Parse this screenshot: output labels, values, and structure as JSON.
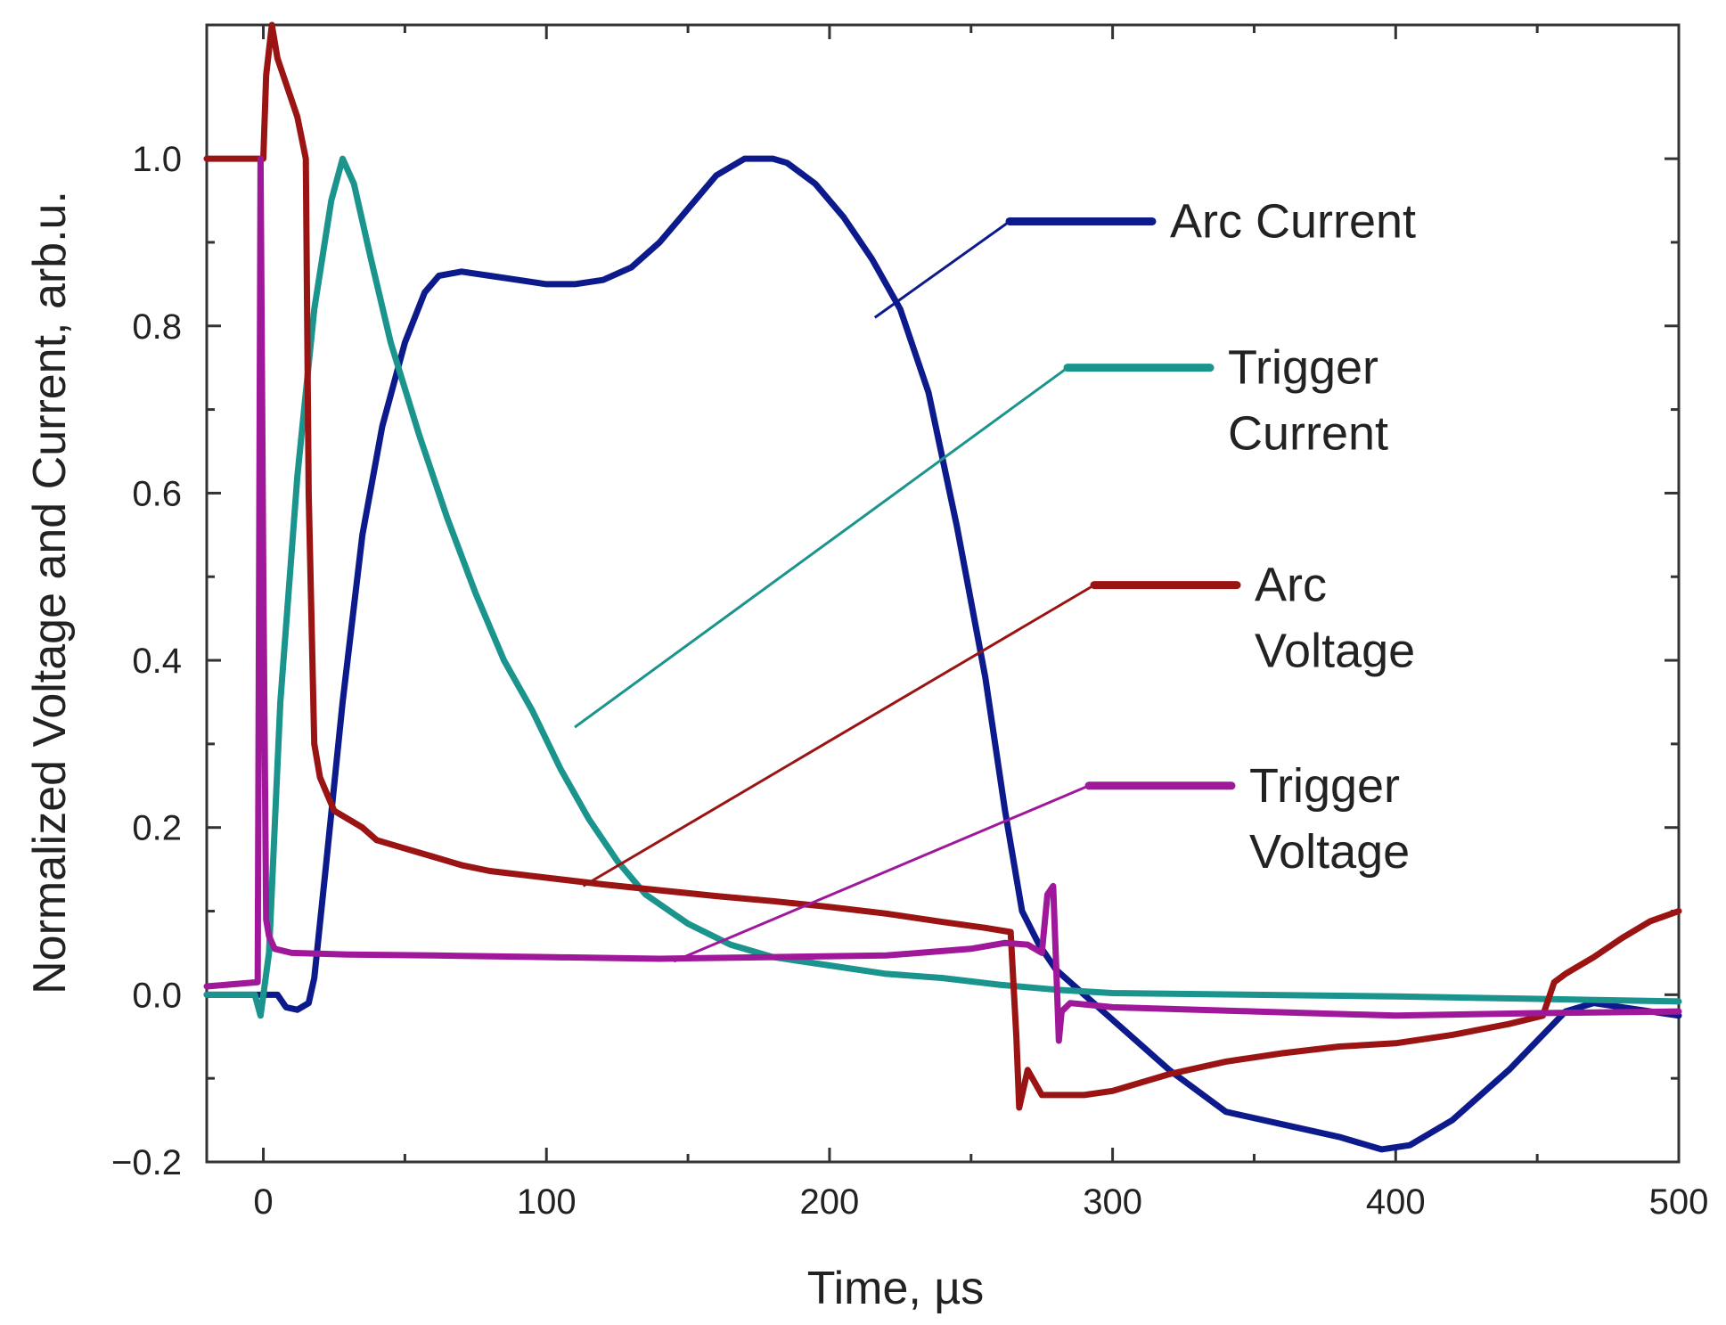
{
  "chart_data": {
    "type": "line",
    "title": "",
    "xlabel": "Time, µs",
    "ylabel": "Normalized Voltage and Current, arb.u.",
    "xlim": [
      -20,
      500
    ],
    "ylim": [
      -0.2,
      1.16
    ],
    "xticks": [
      0,
      100,
      200,
      300,
      400,
      500
    ],
    "xtick_labels": [
      "0",
      "100",
      "200",
      "300",
      "400",
      "500"
    ],
    "yticks": [
      -0.2,
      0.0,
      0.2,
      0.4,
      0.6,
      0.8,
      1.0
    ],
    "ytick_labels": [
      "−0.2",
      "0.0",
      "0.2",
      "0.4",
      "0.6",
      "0.8",
      "1.0"
    ],
    "grid": false,
    "series": [
      {
        "name": "Arc Current",
        "label_lines": [
          "Arc Current"
        ],
        "color": "#0d1a8c",
        "points": [
          [
            -20,
            0.0
          ],
          [
            5,
            0.0
          ],
          [
            8,
            -0.015
          ],
          [
            12,
            -0.018
          ],
          [
            16,
            -0.01
          ],
          [
            18,
            0.02
          ],
          [
            22,
            0.15
          ],
          [
            28,
            0.35
          ],
          [
            35,
            0.55
          ],
          [
            42,
            0.68
          ],
          [
            50,
            0.78
          ],
          [
            57,
            0.84
          ],
          [
            62,
            0.86
          ],
          [
            70,
            0.865
          ],
          [
            80,
            0.86
          ],
          [
            90,
            0.855
          ],
          [
            100,
            0.85
          ],
          [
            110,
            0.85
          ],
          [
            120,
            0.855
          ],
          [
            130,
            0.87
          ],
          [
            140,
            0.9
          ],
          [
            150,
            0.94
          ],
          [
            160,
            0.98
          ],
          [
            170,
            1.0
          ],
          [
            180,
            1.0
          ],
          [
            185,
            0.995
          ],
          [
            195,
            0.97
          ],
          [
            205,
            0.93
          ],
          [
            215,
            0.88
          ],
          [
            225,
            0.82
          ],
          [
            235,
            0.72
          ],
          [
            245,
            0.56
          ],
          [
            255,
            0.38
          ],
          [
            262,
            0.22
          ],
          [
            268,
            0.1
          ],
          [
            274,
            0.06
          ],
          [
            280,
            0.03
          ],
          [
            290,
            0.0
          ],
          [
            300,
            -0.03
          ],
          [
            320,
            -0.09
          ],
          [
            340,
            -0.14
          ],
          [
            360,
            -0.155
          ],
          [
            380,
            -0.17
          ],
          [
            395,
            -0.185
          ],
          [
            405,
            -0.18
          ],
          [
            420,
            -0.15
          ],
          [
            440,
            -0.09
          ],
          [
            460,
            -0.02
          ],
          [
            470,
            -0.01
          ],
          [
            500,
            -0.025
          ]
        ]
      },
      {
        "name": "Trigger Current",
        "label_lines": [
          "Trigger",
          "Current"
        ],
        "color": "#1a948c",
        "points": [
          [
            -20,
            0.0
          ],
          [
            -3,
            0.0
          ],
          [
            -1,
            -0.025
          ],
          [
            2,
            0.05
          ],
          [
            6,
            0.35
          ],
          [
            12,
            0.62
          ],
          [
            18,
            0.82
          ],
          [
            24,
            0.95
          ],
          [
            28,
            1.0
          ],
          [
            32,
            0.97
          ],
          [
            38,
            0.88
          ],
          [
            45,
            0.78
          ],
          [
            55,
            0.67
          ],
          [
            65,
            0.57
          ],
          [
            75,
            0.48
          ],
          [
            85,
            0.4
          ],
          [
            95,
            0.34
          ],
          [
            105,
            0.27
          ],
          [
            115,
            0.21
          ],
          [
            125,
            0.16
          ],
          [
            135,
            0.12
          ],
          [
            150,
            0.085
          ],
          [
            165,
            0.06
          ],
          [
            180,
            0.045
          ],
          [
            200,
            0.035
          ],
          [
            220,
            0.025
          ],
          [
            240,
            0.02
          ],
          [
            260,
            0.012
          ],
          [
            280,
            0.006
          ],
          [
            300,
            0.002
          ],
          [
            350,
            0.0
          ],
          [
            400,
            -0.002
          ],
          [
            450,
            -0.005
          ],
          [
            500,
            -0.008
          ]
        ]
      },
      {
        "name": "Arc Voltage",
        "label_lines": [
          "Arc",
          "Voltage"
        ],
        "color": "#9a1414",
        "points": [
          [
            -20,
            1.0
          ],
          [
            0,
            1.0
          ],
          [
            1,
            1.1
          ],
          [
            3,
            1.16
          ],
          [
            5,
            1.12
          ],
          [
            8,
            1.09
          ],
          [
            12,
            1.05
          ],
          [
            15,
            1.0
          ],
          [
            16,
            0.6
          ],
          [
            18,
            0.3
          ],
          [
            20,
            0.26
          ],
          [
            25,
            0.22
          ],
          [
            30,
            0.21
          ],
          [
            35,
            0.2
          ],
          [
            40,
            0.185
          ],
          [
            50,
            0.175
          ],
          [
            60,
            0.165
          ],
          [
            70,
            0.155
          ],
          [
            80,
            0.148
          ],
          [
            100,
            0.14
          ],
          [
            120,
            0.132
          ],
          [
            140,
            0.125
          ],
          [
            160,
            0.118
          ],
          [
            180,
            0.112
          ],
          [
            200,
            0.105
          ],
          [
            220,
            0.097
          ],
          [
            240,
            0.087
          ],
          [
            255,
            0.08
          ],
          [
            264,
            0.075
          ],
          [
            266,
            -0.05
          ],
          [
            267,
            -0.135
          ],
          [
            270,
            -0.09
          ],
          [
            275,
            -0.12
          ],
          [
            280,
            -0.12
          ],
          [
            290,
            -0.12
          ],
          [
            300,
            -0.115
          ],
          [
            320,
            -0.095
          ],
          [
            340,
            -0.08
          ],
          [
            360,
            -0.07
          ],
          [
            380,
            -0.062
          ],
          [
            400,
            -0.058
          ],
          [
            420,
            -0.048
          ],
          [
            440,
            -0.035
          ],
          [
            452,
            -0.025
          ],
          [
            456,
            0.015
          ],
          [
            460,
            0.025
          ],
          [
            470,
            0.045
          ],
          [
            480,
            0.068
          ],
          [
            490,
            0.088
          ],
          [
            500,
            0.1
          ]
        ]
      },
      {
        "name": "Trigger Voltage",
        "label_lines": [
          "Trigger",
          "Voltage"
        ],
        "color": "#a0189a",
        "points": [
          [
            -20,
            0.01
          ],
          [
            -2,
            0.015
          ],
          [
            -1,
            1.0
          ],
          [
            0,
            0.5
          ],
          [
            1,
            0.09
          ],
          [
            2,
            0.07
          ],
          [
            4,
            0.055
          ],
          [
            10,
            0.05
          ],
          [
            30,
            0.048
          ],
          [
            60,
            0.047
          ],
          [
            100,
            0.045
          ],
          [
            140,
            0.043
          ],
          [
            180,
            0.045
          ],
          [
            220,
            0.047
          ],
          [
            250,
            0.055
          ],
          [
            262,
            0.062
          ],
          [
            270,
            0.06
          ],
          [
            275,
            0.05
          ],
          [
            277,
            0.12
          ],
          [
            279,
            0.13
          ],
          [
            280,
            0.04
          ],
          [
            281,
            -0.055
          ],
          [
            282,
            -0.02
          ],
          [
            285,
            -0.01
          ],
          [
            300,
            -0.015
          ],
          [
            350,
            -0.02
          ],
          [
            400,
            -0.025
          ],
          [
            450,
            -0.022
          ],
          [
            500,
            -0.02
          ]
        ]
      }
    ],
    "legend": [
      {
        "series": "Arc Current",
        "lines": [
          "Arc Current"
        ],
        "anchor_point": [
          216,
          0.81
        ],
        "label_level": 0.925
      },
      {
        "series": "Trigger Current",
        "lines": [
          "Trigger",
          "Current"
        ],
        "anchor_point": [
          110,
          0.32
        ],
        "label_level": 0.75
      },
      {
        "series": "Arc Voltage",
        "lines": [
          "Arc",
          "Voltage"
        ],
        "anchor_point": [
          113,
          0.13
        ],
        "label_level": 0.49
      },
      {
        "series": "Trigger Voltage",
        "lines": [
          "Trigger",
          "Voltage"
        ],
        "anchor_point": [
          145,
          0.04
        ],
        "label_level": 0.25
      }
    ]
  }
}
